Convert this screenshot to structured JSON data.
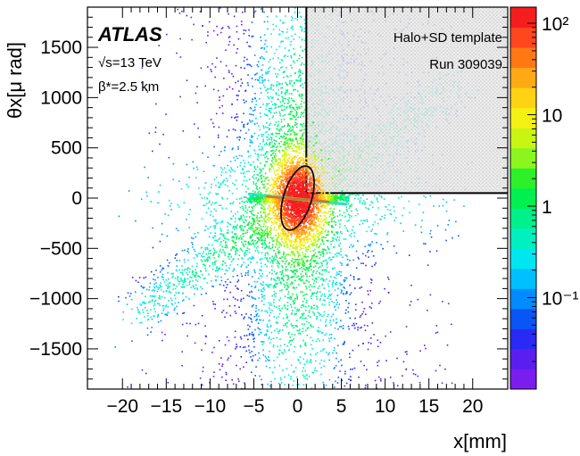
{
  "chart_data": {
    "type": "heatmap",
    "title": "",
    "xlabel": "x[mm]",
    "ylabel": "θx[μ rad]",
    "xlim": [
      -24,
      24
    ],
    "ylim": [
      -1900,
      1900
    ],
    "x_ticks": [
      -20,
      -15,
      -10,
      -5,
      0,
      5,
      10,
      15,
      20
    ],
    "y_ticks": [
      -1500,
      -1000,
      -500,
      0,
      500,
      1000,
      1500
    ],
    "x_tick_labels": [
      "−20",
      "−15",
      "−10",
      "−5",
      "0",
      "5",
      "10",
      "15",
      "20"
    ],
    "y_tick_labels": [
      "−1500",
      "−1000",
      "−500",
      "0",
      "500",
      "1000",
      "1500"
    ],
    "colorbar": {
      "scale": "log",
      "range": [
        0.01,
        150
      ],
      "ticks": [
        0.1,
        1,
        10,
        100
      ],
      "tick_labels": [
        "10⁻¹",
        "1",
        "10",
        "10²"
      ],
      "colors": [
        "#7a1ef0",
        "#5a1ff0",
        "#2a2af5",
        "#0a55f5",
        "#008cff",
        "#00c0ff",
        "#00e6f0",
        "#00f0c0",
        "#00f08c",
        "#00f050",
        "#2ef02a",
        "#8cf51e",
        "#c8f514",
        "#f5f014",
        "#ffd214",
        "#ffaa14",
        "#ff7814",
        "#ff461e",
        "#f51e1e"
      ]
    },
    "annotations": {
      "experiment": "ATLAS",
      "energy": "√s=13 TeV",
      "beta_star": "β*=2.5 km",
      "template": "Halo+SD template",
      "run": "Run 309039"
    },
    "template_region": {
      "x_min": 1,
      "y_min": 50
    },
    "ellipse": {
      "center_x": 0,
      "center_y": 0,
      "semi_axis_x": 1.6,
      "semi_axis_y": 330,
      "tilt_deg": 17
    }
  }
}
